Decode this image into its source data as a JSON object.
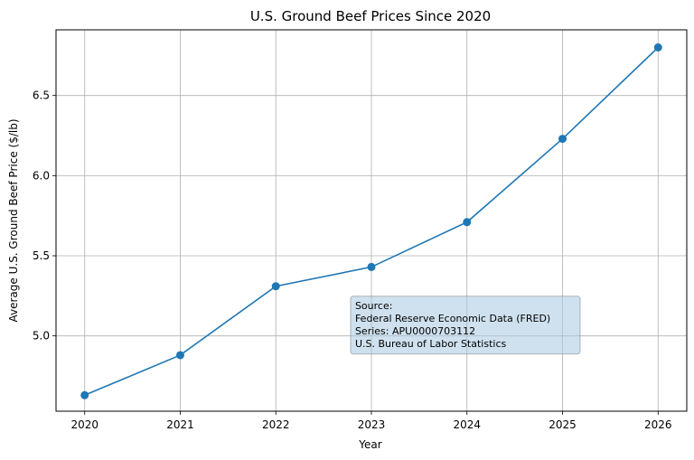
{
  "chart_data": {
    "type": "line",
    "title": "U.S. Ground Beef Prices Since 2020",
    "xlabel": "Year",
    "ylabel": "Average U.S. Ground Beef Price ($/lb)",
    "x": [
      2020,
      2021,
      2022,
      2023,
      2024,
      2025,
      2026
    ],
    "values": [
      4.63,
      4.88,
      5.31,
      5.43,
      5.71,
      6.23,
      6.8
    ],
    "xlim": [
      2019.7,
      2026.3
    ],
    "ylim": [
      4.53,
      6.91
    ],
    "x_ticks": [
      "2020",
      "2021",
      "2022",
      "2023",
      "2024",
      "2025",
      "2026"
    ],
    "y_ticks": [
      "5.0",
      "5.5",
      "6.0",
      "6.5"
    ],
    "grid": true,
    "line_color": "#1f77b4",
    "annotation": {
      "lines": [
        "Source:",
        "Federal Reserve Economic Data (FRED)",
        "Series: APU0000703112",
        "U.S. Bureau of Labor Statistics"
      ],
      "anchor_x": 2022.82,
      "anchor_y": 5.225,
      "box_color": "#a8c8e0"
    }
  }
}
